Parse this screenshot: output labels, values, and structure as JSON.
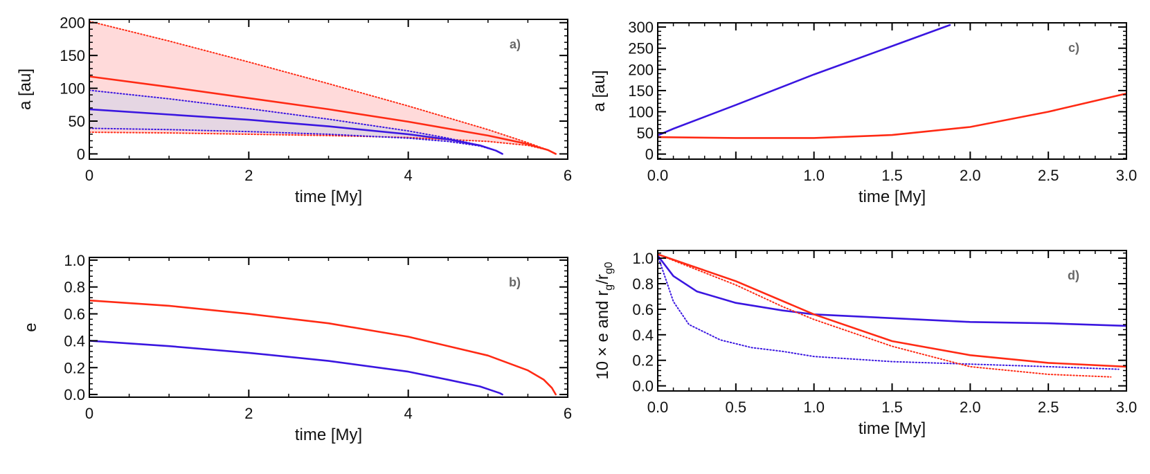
{
  "colors": {
    "red": "#ff2a14",
    "blue": "#3a16e0",
    "red_fill": "#ffdada",
    "overlap_fill": "#e5d6e3",
    "axis": "#000000",
    "panel_label": "#666666"
  },
  "chart_data": [
    {
      "id": "a",
      "type": "line",
      "panel_label": "a)",
      "xlabel": "time [My]",
      "ylabel": "a  [au]",
      "xlim": [
        0,
        6
      ],
      "ylim": [
        -8,
        205
      ],
      "xticks": [
        0,
        2,
        4,
        6
      ],
      "xtick_labels": [
        "0",
        "2",
        "4",
        "6"
      ],
      "yticks": [
        0,
        50,
        100,
        150,
        200
      ],
      "ytick_labels": [
        "0",
        "50",
        "100",
        "150",
        "200"
      ],
      "shaded_regions": [
        {
          "name": "red-envelope",
          "color": "red_fill",
          "upper": {
            "x": [
              0,
              1,
              2,
              3,
              4,
              5,
              5.5,
              5.75,
              5.85
            ],
            "y": [
              202,
              172,
              140,
              107,
              73,
              37,
              17,
              6,
              0
            ]
          },
          "lower": {
            "x": [
              0,
              1,
              2,
              3,
              4,
              5,
              5.5,
              5.75,
              5.85
            ],
            "y": [
              33,
              32,
              30,
              28,
              25,
              19,
              13,
              6,
              0
            ]
          }
        },
        {
          "name": "blue-envelope",
          "color": "overlap_fill",
          "upper": {
            "x": [
              0,
              1,
              2,
              3,
              4,
              4.5,
              4.9,
              5.1,
              5.18
            ],
            "y": [
              97,
              84,
              69,
              53,
              35,
              24,
              13,
              5,
              0
            ]
          },
          "lower": {
            "x": [
              0,
              1,
              2,
              3,
              4,
              4.5,
              4.9,
              5.1,
              5.18
            ],
            "y": [
              39,
              37,
              34,
              30,
              24,
              19,
              12,
              5,
              0
            ]
          }
        }
      ],
      "series": [
        {
          "name": "red apocentre",
          "color": "red",
          "style": "dotted",
          "x": [
            0,
            1,
            2,
            3,
            4,
            5,
            5.5,
            5.75,
            5.85
          ],
          "y": [
            202,
            172,
            140,
            107,
            73,
            37,
            17,
            6,
            0
          ]
        },
        {
          "name": "red pericentre",
          "color": "red",
          "style": "dotted",
          "x": [
            0,
            1,
            2,
            3,
            4,
            5,
            5.5,
            5.75,
            5.85
          ],
          "y": [
            33,
            32,
            30,
            28,
            25,
            19,
            13,
            6,
            0
          ]
        },
        {
          "name": "blue apocentre",
          "color": "blue",
          "style": "dotted",
          "x": [
            0,
            1,
            2,
            3,
            4,
            4.5,
            4.9,
            5.1,
            5.18
          ],
          "y": [
            97,
            84,
            69,
            53,
            35,
            24,
            13,
            5,
            0
          ]
        },
        {
          "name": "blue pericentre",
          "color": "blue",
          "style": "dotted",
          "x": [
            0,
            1,
            2,
            3,
            4,
            4.5,
            4.9,
            5.1,
            5.18
          ],
          "y": [
            39,
            37,
            34,
            30,
            24,
            19,
            12,
            5,
            0
          ]
        },
        {
          "name": "red semi-major axis",
          "color": "red",
          "style": "solid",
          "x": [
            0,
            1,
            2,
            3,
            4,
            5,
            5.5,
            5.75,
            5.85
          ],
          "y": [
            118,
            102,
            85,
            68,
            49,
            28,
            15,
            6,
            0
          ]
        },
        {
          "name": "blue semi-major axis",
          "color": "blue",
          "style": "solid",
          "x": [
            0,
            1,
            2,
            3,
            4,
            4.5,
            4.9,
            5.1,
            5.18
          ],
          "y": [
            68,
            60,
            52,
            42,
            30,
            22,
            13,
            5,
            0
          ]
        }
      ]
    },
    {
      "id": "b",
      "type": "line",
      "panel_label": "b)",
      "xlabel": "time [My]",
      "ylabel": "e",
      "xlim": [
        0,
        6
      ],
      "ylim": [
        -0.02,
        1.02
      ],
      "xticks": [
        0,
        2,
        4,
        6
      ],
      "xtick_labels": [
        "0",
        "2",
        "4",
        "6"
      ],
      "yticks": [
        0,
        0.2,
        0.4,
        0.6,
        0.8,
        1.0
      ],
      "ytick_labels": [
        "0.0",
        "0.2",
        "0.4",
        "0.6",
        "0.8",
        "1.0"
      ],
      "series": [
        {
          "name": "red eccentricity",
          "color": "red",
          "style": "solid",
          "x": [
            0,
            1,
            2,
            3,
            4,
            5,
            5.5,
            5.7,
            5.8,
            5.85
          ],
          "y": [
            0.7,
            0.66,
            0.6,
            0.53,
            0.43,
            0.29,
            0.18,
            0.11,
            0.05,
            0.0
          ]
        },
        {
          "name": "blue eccentricity",
          "color": "blue",
          "style": "solid",
          "x": [
            0,
            1,
            2,
            3,
            4,
            4.5,
            4.9,
            5.05,
            5.15,
            5.18
          ],
          "y": [
            0.4,
            0.36,
            0.31,
            0.25,
            0.17,
            0.11,
            0.06,
            0.03,
            0.01,
            0.0
          ]
        }
      ]
    },
    {
      "id": "c",
      "type": "line",
      "panel_label": "c)",
      "xlabel": "time [My]",
      "ylabel": "a  [au]",
      "xlim": [
        0,
        3
      ],
      "ylim": [
        -12,
        310
      ],
      "xticks": [
        0,
        0.5,
        1,
        1.5,
        2,
        2.5,
        3
      ],
      "xtick_labels": [
        "0.0",
        "",
        "1.0",
        "1.5",
        "2.0",
        "2.5",
        "3.0"
      ],
      "yticks": [
        0,
        50,
        100,
        150,
        200,
        250,
        300
      ],
      "ytick_labels": [
        "0",
        "50",
        "100",
        "150",
        "200",
        "250",
        "300"
      ],
      "series": [
        {
          "name": "blue semi-major axis",
          "color": "blue",
          "style": "solid",
          "x": [
            0,
            0.1,
            0.5,
            1.0,
            1.5,
            1.87
          ],
          "y": [
            44,
            60,
            116,
            188,
            255,
            305
          ]
        },
        {
          "name": "red semi-major axis",
          "color": "red",
          "style": "solid",
          "x": [
            0,
            0.5,
            1.0,
            1.5,
            2.0,
            2.5,
            3.0
          ],
          "y": [
            40,
            38,
            38,
            45,
            64,
            100,
            143
          ]
        }
      ]
    },
    {
      "id": "d",
      "type": "line",
      "panel_label": "d)",
      "xlabel": "time [My]",
      "ylabel": "10 × e  and  r_g/r_g0",
      "ylabel_parts": {
        "left": "10 × e  and  r",
        "sub1": "g",
        "slash": "/r",
        "sub2": "g0"
      },
      "xlim": [
        0,
        3
      ],
      "ylim": [
        -0.04,
        1.06
      ],
      "xticks": [
        0,
        0.5,
        1,
        1.5,
        2,
        2.5,
        3
      ],
      "xtick_labels": [
        "0.0",
        "0.5",
        "1.0",
        "1.5",
        "2.0",
        "2.5",
        "3.0"
      ],
      "yticks": [
        0,
        0.2,
        0.4,
        0.6,
        0.8,
        1.0
      ],
      "ytick_labels": [
        "0.0",
        "0.2",
        "0.4",
        "0.6",
        "0.8",
        "1.0"
      ],
      "series": [
        {
          "name": "blue r_g/r_g0",
          "color": "blue",
          "style": "solid",
          "x": [
            0,
            0.1,
            0.25,
            0.5,
            0.8,
            1.0,
            1.5,
            2.0,
            2.5,
            3.0
          ],
          "y": [
            1.02,
            0.86,
            0.74,
            0.65,
            0.59,
            0.56,
            0.53,
            0.5,
            0.49,
            0.47
          ]
        },
        {
          "name": "blue 10 x e",
          "color": "blue",
          "style": "dotted",
          "x": [
            0,
            0.1,
            0.2,
            0.4,
            0.6,
            0.8,
            1.0,
            1.5,
            2.0,
            2.5,
            2.95
          ],
          "y": [
            1.02,
            0.66,
            0.48,
            0.36,
            0.3,
            0.27,
            0.23,
            0.19,
            0.17,
            0.15,
            0.13
          ]
        },
        {
          "name": "red r_g/r_g0",
          "color": "red",
          "style": "solid",
          "x": [
            0,
            0.5,
            1.0,
            1.5,
            2.0,
            2.5,
            3.0
          ],
          "y": [
            1.03,
            0.82,
            0.56,
            0.35,
            0.24,
            0.18,
            0.15
          ]
        },
        {
          "name": "red 10 x e",
          "color": "red",
          "style": "dotted",
          "x": [
            0,
            0.5,
            0.8,
            1.0,
            1.5,
            2.0,
            2.5,
            2.9
          ],
          "y": [
            1.03,
            0.79,
            0.62,
            0.52,
            0.31,
            0.15,
            0.09,
            0.07
          ]
        }
      ]
    }
  ]
}
